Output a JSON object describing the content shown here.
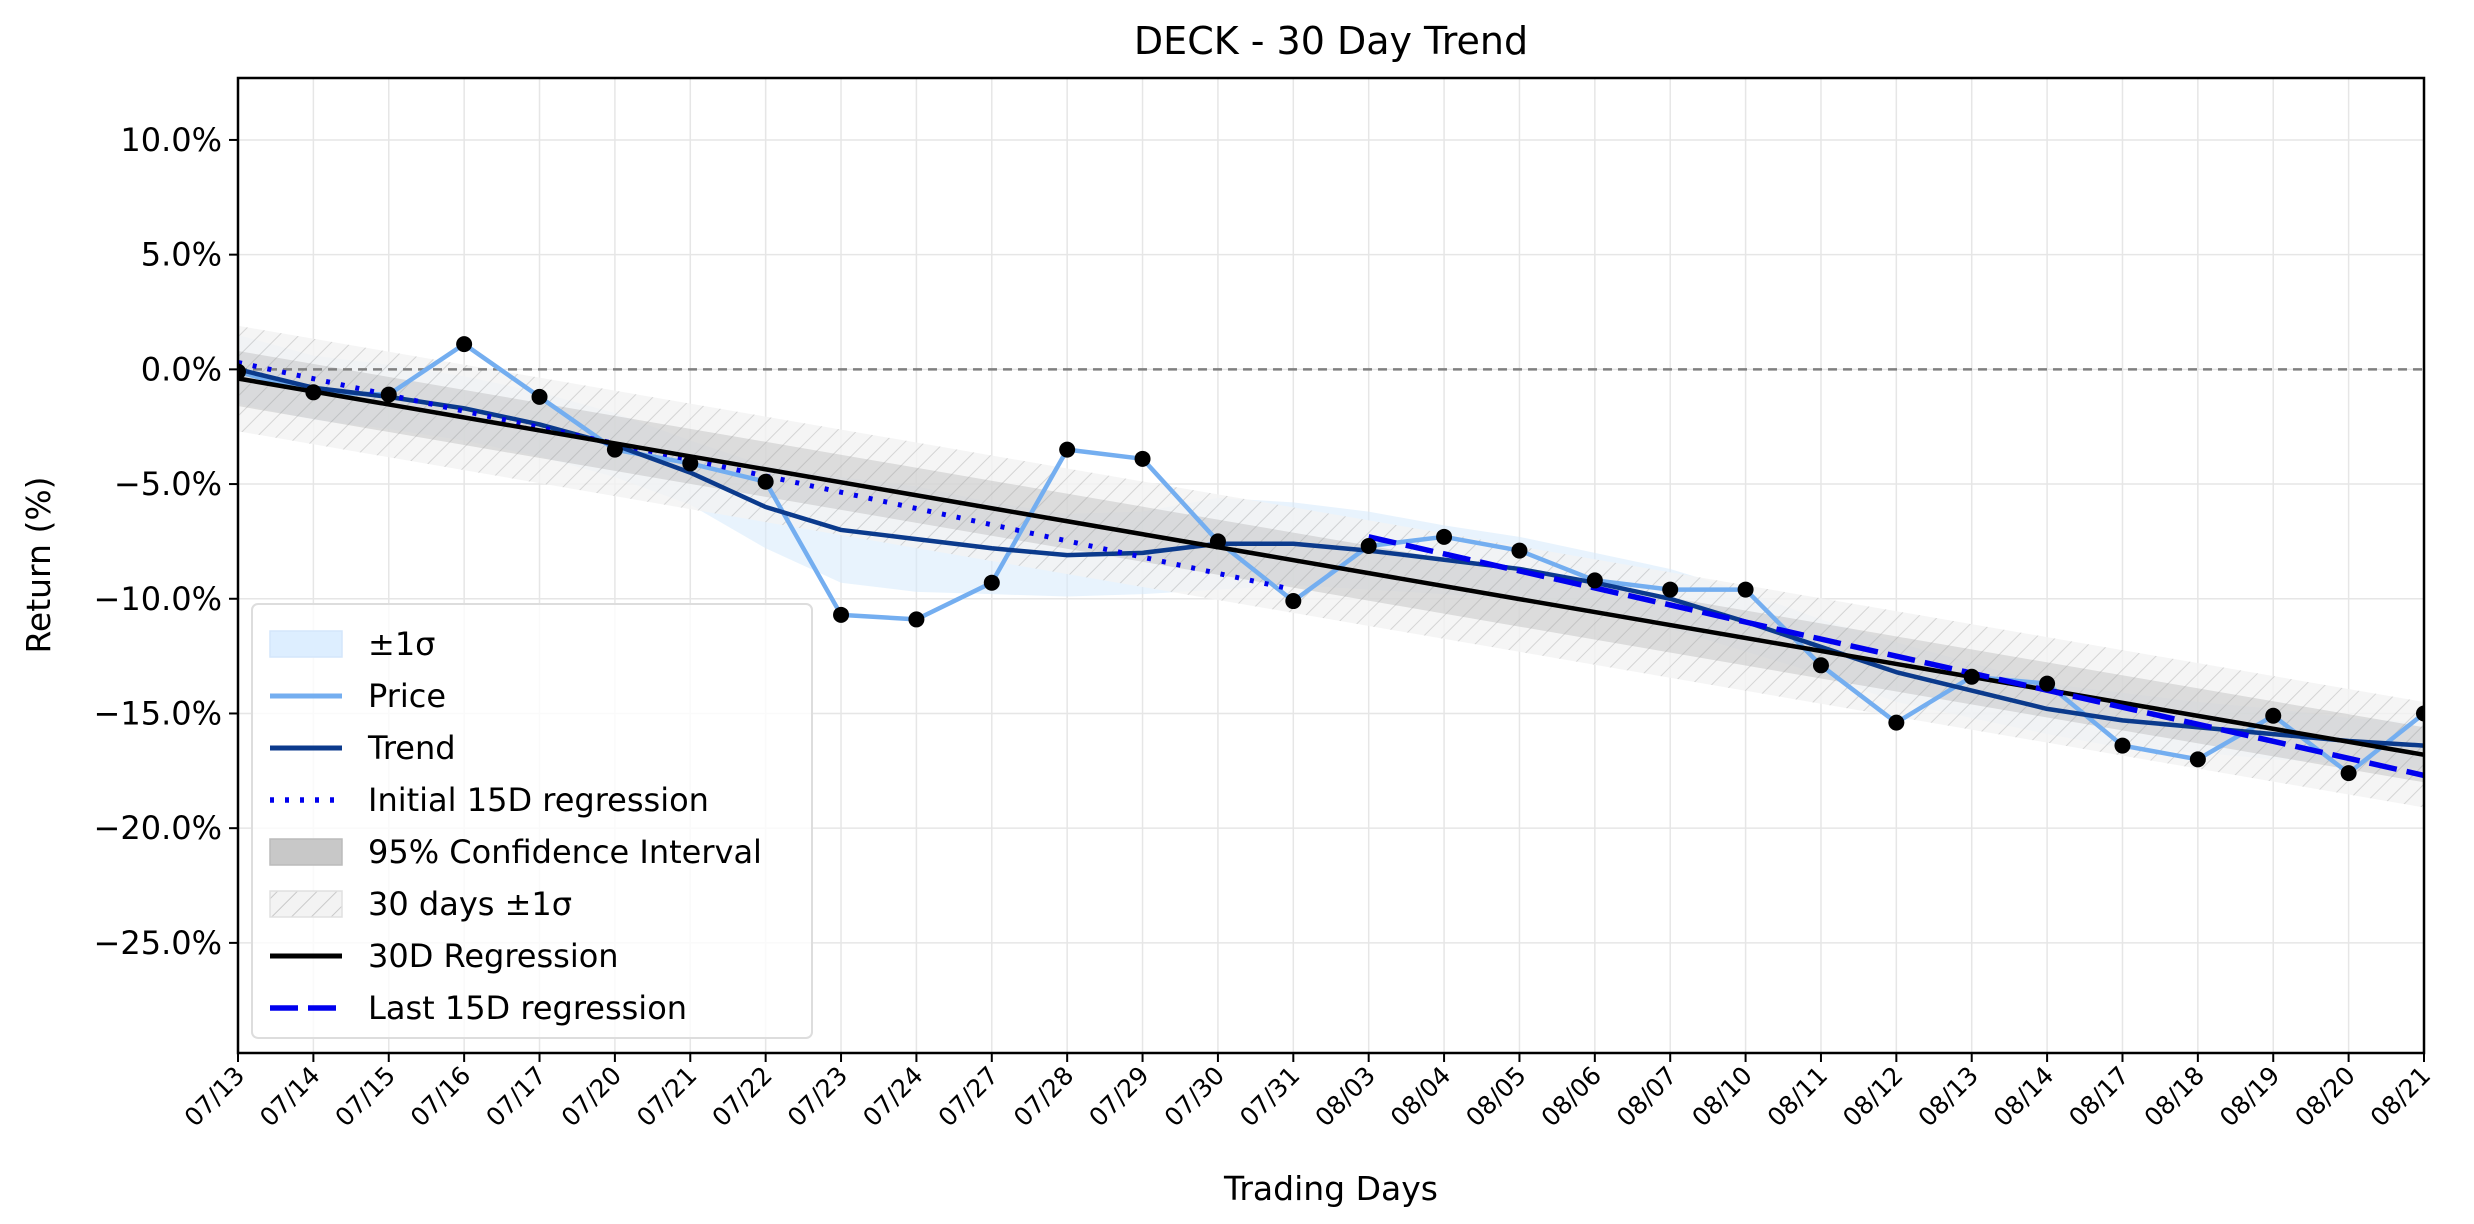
{
  "chart_data": {
    "type": "line",
    "title": "DECK - 30 Day Trend",
    "xlabel": "Trading Days",
    "ylabel": "Return (%)",
    "ylim": [
      -29.8,
      12.7
    ],
    "yticks": [
      10,
      5,
      0,
      -5,
      -10,
      -15,
      -20,
      -25
    ],
    "ytick_labels": [
      "10.0%",
      "5.0%",
      "0.0%",
      "−5.0%",
      "−10.0%",
      "−15.0%",
      "−20.0%",
      "−25.0%"
    ],
    "grid": true,
    "legend_position": "lower-left",
    "categories": [
      "07/13",
      "07/14",
      "07/15",
      "07/16",
      "07/17",
      "07/20",
      "07/21",
      "07/22",
      "07/23",
      "07/24",
      "07/27",
      "07/28",
      "07/29",
      "07/30",
      "07/31",
      "08/03",
      "08/04",
      "08/05",
      "08/06",
      "08/07",
      "08/10",
      "08/11",
      "08/12",
      "08/13",
      "08/14",
      "08/17",
      "08/18",
      "08/19",
      "08/20",
      "08/21"
    ],
    "reference_line": {
      "y": 0,
      "color": "#808080",
      "style": "dashed"
    },
    "series": [
      {
        "name": "Price",
        "kind": "line",
        "color": "#74aef0",
        "values": [
          -0.1,
          -1.0,
          -1.1,
          1.1,
          -1.2,
          -3.5,
          -4.1,
          -4.9,
          -10.7,
          -10.9,
          -9.3,
          -3.5,
          -3.9,
          -7.5,
          -10.1,
          -7.7,
          -7.3,
          -7.9,
          -9.2,
          -9.6,
          -9.6,
          -12.9,
          -15.4,
          -13.4,
          -13.7,
          -16.4,
          -17.0,
          -15.1,
          -17.6,
          -15.0
        ]
      },
      {
        "name": "Trend",
        "kind": "line",
        "color": "#0b3a8c",
        "values": [
          0.0,
          -0.8,
          -1.2,
          -1.7,
          -2.4,
          -3.3,
          -4.5,
          -6.0,
          -7.0,
          -7.4,
          -7.8,
          -8.1,
          -8.0,
          -7.6,
          -7.6,
          -7.9,
          -8.3,
          -8.7,
          -9.3,
          -10.0,
          -11.0,
          -12.1,
          -13.2,
          -14.0,
          -14.8,
          -15.3,
          -15.6,
          -15.9,
          -16.2,
          -16.4
        ]
      },
      {
        "name": "Initial 15D regression",
        "kind": "line",
        "color": "#0000ee",
        "style": "dotted",
        "x_range": [
          0,
          14
        ],
        "y_range": [
          0.3,
          -9.6
        ]
      },
      {
        "name": "30D Regression",
        "kind": "line",
        "color": "#000000",
        "x_range": [
          0,
          29
        ],
        "y_range": [
          -0.4,
          -16.8
        ]
      },
      {
        "name": "Last 15D regression",
        "kind": "line",
        "color": "#0000ee",
        "style": "dashed",
        "x_range": [
          15,
          29
        ],
        "y_range": [
          -7.3,
          -17.7
        ]
      },
      {
        "name": "±1σ",
        "kind": "band",
        "color": "#ddeeff",
        "lower": [
          -1.5,
          -2.2,
          -2.6,
          -3.1,
          -3.8,
          -4.7,
          -5.9,
          -7.8,
          -9.3,
          -9.7,
          -9.8,
          -9.9,
          -9.8,
          -9.6,
          -9.4,
          -9.6,
          -9.8,
          -10.1,
          -10.6,
          -11.3,
          -12.3,
          -13.3,
          -14.5,
          -15.2,
          -15.9,
          -16.5,
          -16.7,
          -17.0,
          -17.2,
          -17.4
        ],
        "upper": [
          1.5,
          0.6,
          0.2,
          -0.3,
          -1.0,
          -1.9,
          -3.1,
          -4.2,
          -4.7,
          -5.1,
          -5.8,
          -6.3,
          -6.2,
          -5.6,
          -5.8,
          -6.2,
          -6.8,
          -7.3,
          -8.0,
          -8.7,
          -9.7,
          -10.9,
          -11.9,
          -12.8,
          -13.7,
          -14.1,
          -14.5,
          -14.8,
          -15.2,
          -15.4
        ]
      },
      {
        "name": "95% Confidence Interval",
        "kind": "band",
        "color": "#999999",
        "lower_range": [
          -1.6,
          -18.0
        ],
        "upper_range": [
          0.8,
          -15.6
        ]
      },
      {
        "name": "30 days ±1σ",
        "kind": "band",
        "color": "#cccccc",
        "hatch": true,
        "lower_range": [
          -2.7,
          -19.1
        ],
        "upper_range": [
          1.9,
          -14.5
        ]
      }
    ],
    "markers": {
      "color": "#000000",
      "values": [
        -0.1,
        -1.0,
        -1.1,
        1.1,
        -1.2,
        -3.5,
        -4.1,
        -4.9,
        -10.7,
        -10.9,
        -9.3,
        -3.5,
        -3.9,
        -7.5,
        -10.1,
        -7.7,
        -7.3,
        -7.9,
        -9.2,
        -9.6,
        -9.6,
        -12.9,
        -15.4,
        -13.4,
        -13.7,
        -16.4,
        -17.0,
        -15.1,
        -17.6,
        -15.0
      ]
    },
    "legend": [
      {
        "label": "±1σ",
        "swatch": "band",
        "color": "#ddeeff"
      },
      {
        "label": "Price",
        "swatch": "line",
        "color": "#74aef0"
      },
      {
        "label": "Trend",
        "swatch": "line",
        "color": "#0b3a8c"
      },
      {
        "label": "Initial 15D regression",
        "swatch": "dotted",
        "color": "#0000ee"
      },
      {
        "label": "95% Confidence Interval",
        "swatch": "band",
        "color": "#c8c8c8"
      },
      {
        "label": "30 days ±1σ",
        "swatch": "hatch",
        "color": "#e0e0e0"
      },
      {
        "label": "30D Regression",
        "swatch": "line",
        "color": "#000000"
      },
      {
        "label": "Last 15D regression",
        "swatch": "dashed",
        "color": "#0000ee"
      }
    ]
  }
}
